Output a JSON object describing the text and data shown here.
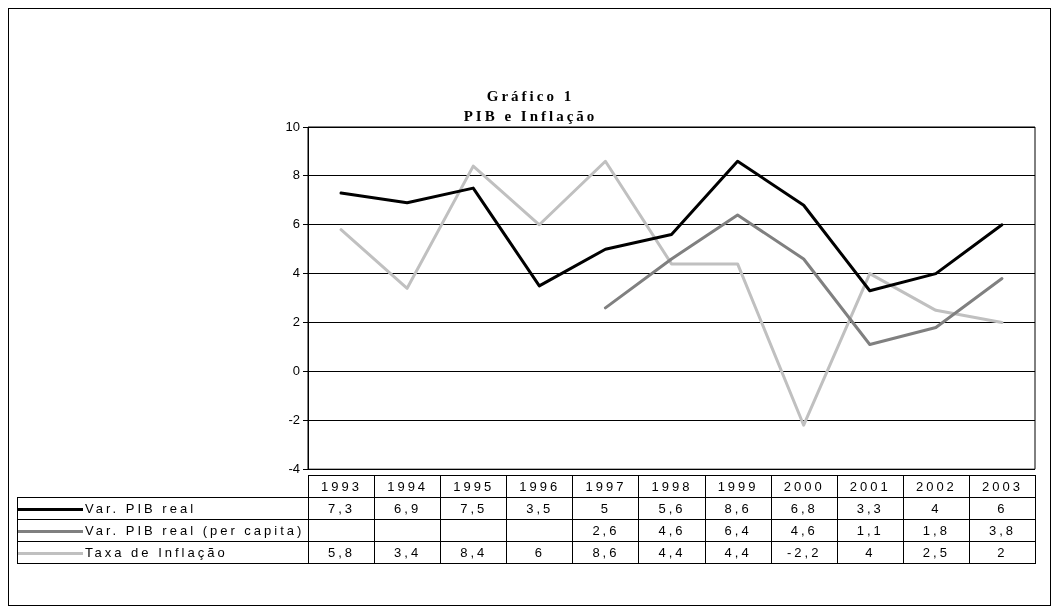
{
  "chart_data": {
    "type": "line",
    "title": "Gráfico 1",
    "subtitle": "PIB e Inflação",
    "categories": [
      "1993",
      "1994",
      "1995",
      "1996",
      "1997",
      "1998",
      "1999",
      "2000",
      "2001",
      "2002",
      "2003"
    ],
    "series": [
      {
        "name": "Var. PIB real",
        "color": "#000000",
        "values": [
          7.3,
          6.9,
          7.5,
          3.5,
          5,
          5.6,
          8.6,
          6.8,
          3.3,
          4,
          6
        ],
        "value_labels": [
          "7,3",
          "6,9",
          "7,5",
          "3,5",
          "5",
          "5,6",
          "8,6",
          "6,8",
          "3,3",
          "4",
          "6"
        ]
      },
      {
        "name": "Var. PIB real (per capita)",
        "color": "#808080",
        "values": [
          null,
          null,
          null,
          null,
          2.6,
          4.6,
          6.4,
          4.6,
          1.1,
          1.8,
          3.8
        ],
        "value_labels": [
          null,
          null,
          null,
          null,
          "2,6",
          "4,6",
          "6,4",
          "4,6",
          "1,1",
          "1,8",
          "3,8"
        ]
      },
      {
        "name": "Taxa de Inflação",
        "color": "#c0c0c0",
        "values": [
          5.8,
          3.4,
          8.4,
          6,
          8.6,
          4.4,
          4.4,
          -2.2,
          4,
          2.5,
          2
        ],
        "value_labels": [
          "5,8",
          "3,4",
          "8,4",
          "6",
          "8,6",
          "4,4",
          "4,4",
          "-2,2",
          "4",
          "2,5",
          "2"
        ]
      }
    ],
    "ylim": [
      -4,
      10
    ],
    "yticks": [
      -4,
      -2,
      0,
      2,
      4,
      6,
      8,
      10
    ],
    "grid": "y",
    "legend": "bottom",
    "marker": "none",
    "line_style": "solid"
  }
}
